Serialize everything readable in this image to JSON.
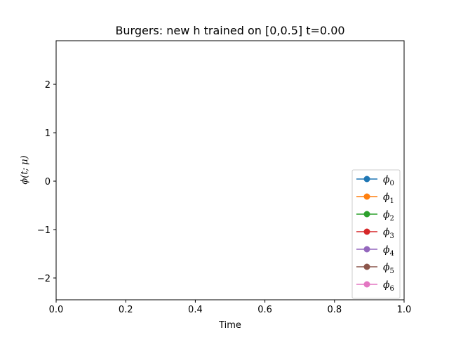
{
  "chart_data": {
    "type": "line",
    "title": "Burgers: new h trained on [0,0.5] t=0.00",
    "xlabel": "Time",
    "ylabel": "ϕ(t; μ)",
    "xlim": [
      0.0,
      1.0
    ],
    "ylim": [
      -2.45,
      2.9
    ],
    "x_ticks": [
      0.0,
      0.2,
      0.4,
      0.6,
      0.8,
      1.0
    ],
    "x_tick_labels": [
      "0.0",
      "0.2",
      "0.4",
      "0.6",
      "0.8",
      "1.0"
    ],
    "y_ticks": [
      -2,
      -1,
      0,
      1,
      2
    ],
    "y_tick_labels": [
      "−2",
      "−1",
      "0",
      "1",
      "2"
    ],
    "grid": false,
    "legend_position": "lower-right",
    "series": [
      {
        "name": "ϕ",
        "sub": "0",
        "color": "#1f77b4",
        "x": [],
        "y": []
      },
      {
        "name": "ϕ",
        "sub": "1",
        "color": "#ff7f0e",
        "x": [],
        "y": []
      },
      {
        "name": "ϕ",
        "sub": "2",
        "color": "#2ca02c",
        "x": [],
        "y": []
      },
      {
        "name": "ϕ",
        "sub": "3",
        "color": "#d62728",
        "x": [],
        "y": []
      },
      {
        "name": "ϕ",
        "sub": "4",
        "color": "#9467bd",
        "x": [],
        "y": []
      },
      {
        "name": "ϕ",
        "sub": "5",
        "color": "#8c564b",
        "x": [],
        "y": []
      },
      {
        "name": "ϕ",
        "sub": "6",
        "color": "#e377c2",
        "x": [],
        "y": []
      }
    ]
  }
}
